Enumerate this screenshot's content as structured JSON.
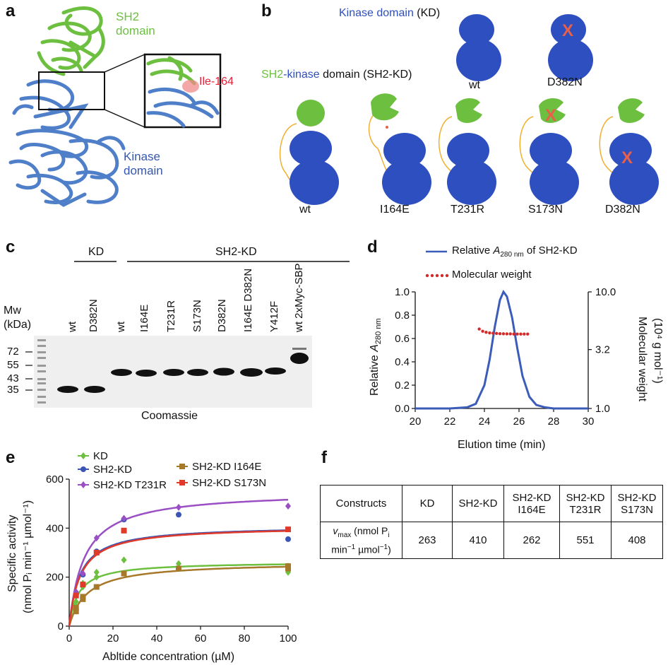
{
  "panels": {
    "a": {
      "label": "a",
      "sh2_label": [
        "SH2",
        "domain"
      ],
      "kinase_label": [
        "Kinase",
        "domain"
      ],
      "residue_label": "Ile-164"
    },
    "b": {
      "label": "b",
      "kd_title_colored": "Kinase domain",
      "kd_title_suffix": " (KD)",
      "sh2kd_title_part1": "SH2",
      "sh2kd_title_part2": "-kinase",
      "sh2kd_title_part3": " domain (SH2-KD)",
      "kd_variants": [
        "wt",
        "D382N"
      ],
      "sh2kd_variants": [
        "wt",
        "I164E",
        "T231R",
        "S173N",
        "D382N"
      ],
      "mark": "X"
    },
    "c": {
      "label": "c",
      "group_kd": "KD",
      "group_sh2kd": "SH2-KD",
      "mw_title": [
        "Mw",
        "(kDa)"
      ],
      "mw_ticks": [
        "72",
        "55",
        "43",
        "35"
      ],
      "lanes": [
        "wt",
        "D382N",
        "wt",
        "I164E",
        "T231R",
        "S173N",
        "D382N",
        "I164E D382N",
        "Y412F",
        "wt 2xMyc-SBP"
      ],
      "caption": "Coomassie"
    },
    "d": {
      "label": "d",
      "legend_line_prefix": "Relative ",
      "legend_line_A": "A",
      "legend_line_sub": "280 nm",
      "legend_line_suffix": " of SH2-KD",
      "legend_dots": "Molecular weight",
      "left_axis_prefix": "Relative ",
      "left_axis_A": "A",
      "left_axis_sub": "280 nm",
      "right_axis_line1": "Molecular weight",
      "right_axis_line2": "(10⁴ g mol⁻¹)",
      "xlabel": "Elution time (min)"
    },
    "e": {
      "label": "e",
      "ylabel_line1": "Specific activity",
      "ylabel_line2": "(nmol Pᵢ min⁻¹ µmol⁻¹)",
      "xlabel": "Abltide concentration (µM)"
    },
    "f": {
      "label": "f",
      "header": [
        "Constructs",
        "KD",
        "SH2-KD",
        "SH2-KD I164E",
        "SH2-KD T231R",
        "SH2-KD S173N"
      ],
      "row_label": "vmax (nmol Pi min−1 µmol−1)",
      "values": [
        "263",
        "410",
        "262",
        "551",
        "408"
      ]
    }
  },
  "colors": {
    "sh2_green": "#6dbf3f",
    "kinase_blue": "#2e4fbf",
    "ribbon_blue": "#4f7fc8",
    "linker_orange": "#f0b030",
    "mutation_red": "#e8604a",
    "ile_red": "#e8203a",
    "mw_dots": "#d42a2a",
    "elution_line": "#3b5cb8",
    "e_KD": "#6dbf3f",
    "e_SH2KD": "#3a55b5",
    "e_T231R": "#9a4fc4",
    "e_I164E": "#a6792a",
    "e_S173N": "#e03a2a"
  },
  "chart_data": [
    {
      "type": "line",
      "panel": "d",
      "title": "",
      "xlabel": "Elution time (min)",
      "ylabel": "Relative A280 nm",
      "y2label": "Molecular weight (10⁴ g mol⁻¹)",
      "xlim": [
        20,
        30
      ],
      "ylim": [
        0,
        1.0
      ],
      "y2lim": [
        1.0,
        10.0
      ],
      "y2scale": "log",
      "x_ticks": [
        "20",
        "22",
        "24",
        "26",
        "28",
        "30"
      ],
      "y_ticks": [
        "0.0",
        "0.2",
        "0.4",
        "0.6",
        "0.8",
        "1.0"
      ],
      "y2_ticks": [
        "1.0",
        "3.2",
        "10.0"
      ],
      "series": [
        {
          "name": "Relative A280 nm of SH2-KD",
          "x": [
            20,
            22,
            23,
            23.5,
            24,
            24.3,
            24.6,
            24.9,
            25.1,
            25.3,
            25.6,
            25.9,
            26.2,
            26.6,
            27,
            27.5,
            28,
            30
          ],
          "y": [
            0.0,
            0.0,
            0.01,
            0.04,
            0.2,
            0.42,
            0.7,
            0.93,
            1.0,
            0.96,
            0.78,
            0.52,
            0.28,
            0.1,
            0.03,
            0.01,
            0.0,
            0.0
          ]
        },
        {
          "name": "Molecular weight",
          "axis": "right",
          "x": [
            23.7,
            23.9,
            24.1,
            24.3,
            24.5,
            24.7,
            24.9,
            25.1,
            25.3,
            25.5,
            25.7,
            25.9,
            26.1,
            26.3,
            26.5
          ],
          "y": [
            4.8,
            4.6,
            4.5,
            4.45,
            4.42,
            4.4,
            4.38,
            4.37,
            4.36,
            4.36,
            4.35,
            4.35,
            4.35,
            4.35,
            4.35
          ]
        }
      ]
    },
    {
      "type": "scatter",
      "panel": "e",
      "title": "",
      "xlabel": "Abltide concentration (µM)",
      "ylabel": "Specific activity (nmol Pi min−1 µmol−1)",
      "xlim": [
        0,
        100
      ],
      "ylim": [
        0,
        600
      ],
      "x_ticks": [
        "0",
        "20",
        "40",
        "60",
        "80",
        "100"
      ],
      "y_ticks": [
        "0",
        "200",
        "400",
        "600"
      ],
      "legend_position": "top",
      "series": [
        {
          "name": "KD",
          "marker": "diamond",
          "km": 4.2,
          "vmax": 263,
          "x": [
            3.125,
            3.125,
            6.25,
            6.25,
            12.5,
            12.5,
            25,
            50,
            100,
            100
          ],
          "y": [
            100,
            80,
            175,
            160,
            220,
            200,
            270,
            255,
            220,
            245
          ]
        },
        {
          "name": "SH2-KD",
          "marker": "circle",
          "km": 4.8,
          "vmax": 410,
          "x": [
            3.125,
            6.25,
            12.5,
            25,
            50,
            100
          ],
          "y": [
            130,
            210,
            305,
            435,
            455,
            355
          ]
        },
        {
          "name": "SH2-KD T231R",
          "marker": "diamond",
          "km": 6.8,
          "vmax": 551,
          "x": [
            3.125,
            6.25,
            12.5,
            25,
            50,
            100
          ],
          "y": [
            140,
            215,
            360,
            440,
            485,
            490
          ]
        },
        {
          "name": "SH2-KD I164E",
          "marker": "square",
          "km": 8.0,
          "vmax": 262,
          "x": [
            3.125,
            3.125,
            6.25,
            6.25,
            12.5,
            25,
            50,
            100,
            100
          ],
          "y": [
            75,
            60,
            120,
            110,
            160,
            215,
            235,
            245,
            235
          ]
        },
        {
          "name": "SH2-KD S173N",
          "marker": "square",
          "km": 5.0,
          "vmax": 408,
          "x": [
            3.125,
            6.25,
            12.5,
            25,
            100
          ],
          "y": [
            125,
            170,
            300,
            390,
            395
          ]
        }
      ]
    },
    {
      "type": "table",
      "panel": "f",
      "columns": [
        "Constructs",
        "KD",
        "SH2-KD",
        "SH2-KD I164E",
        "SH2-KD T231R",
        "SH2-KD S173N"
      ],
      "rows": [
        [
          "vmax (nmol Pi min−1 µmol−1)",
          "263",
          "410",
          "262",
          "551",
          "408"
        ]
      ]
    }
  ]
}
